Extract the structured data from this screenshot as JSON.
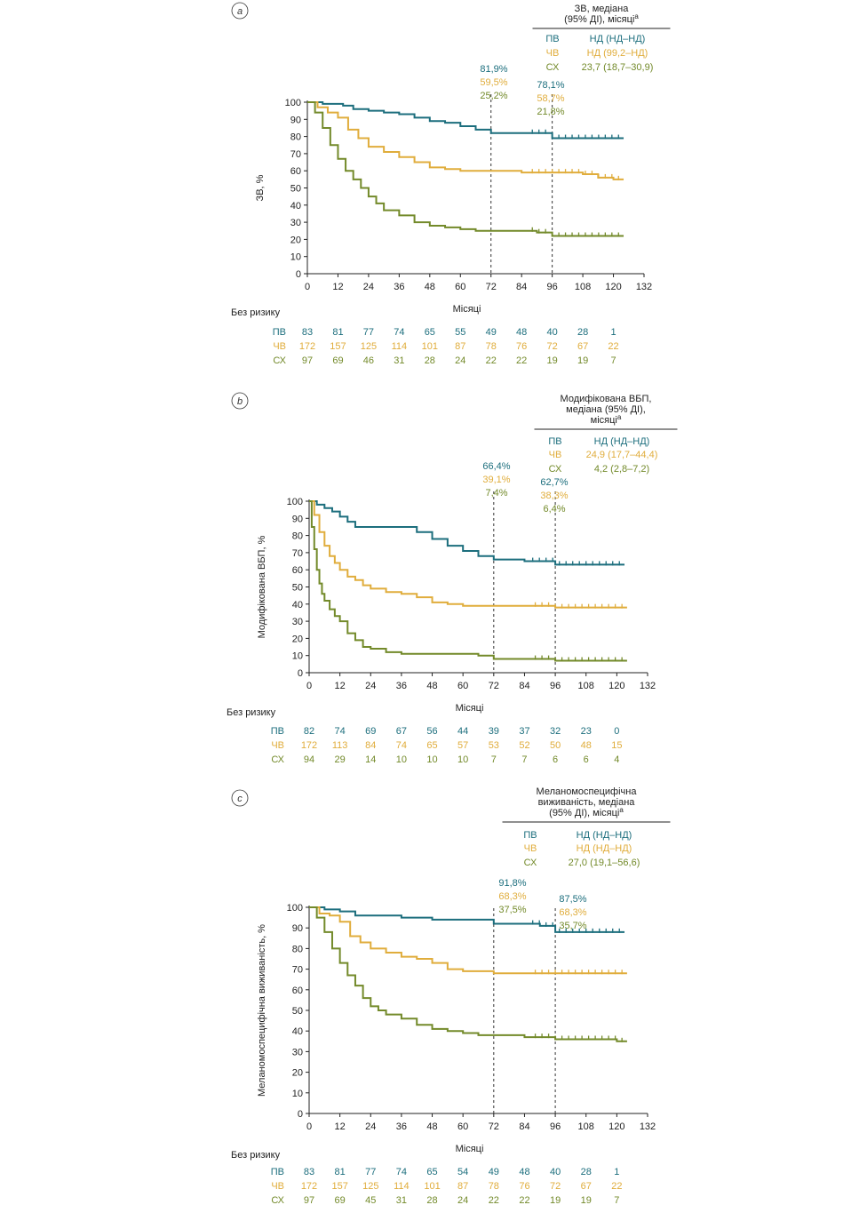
{
  "colors": {
    "pv": "#1c6e7d",
    "chv": "#e0ad3c",
    "sx": "#738a2a",
    "axis": "#222222"
  },
  "common": {
    "xlabel": "Місяці",
    "risk_title": "Без ризику",
    "x_ticks": [
      "0",
      "12",
      "24",
      "36",
      "48",
      "60",
      "72",
      "84",
      "96",
      "108",
      "120",
      "132"
    ],
    "y_ticks": [
      "0",
      "10",
      "20",
      "30",
      "40",
      "50",
      "60",
      "70",
      "80",
      "90",
      "100"
    ]
  },
  "chart_data": [
    {
      "type": "line",
      "panel_label": "a",
      "ylabel": "ЗВ, %",
      "xlim": [
        0,
        132
      ],
      "ylim": [
        0,
        100
      ],
      "legend": {
        "title": [
          "ЗВ, медіана",
          "(95% ДІ), місяці"
        ],
        "sup": "a",
        "rows": [
          {
            "group": "ПВ",
            "value": "НД (НД–НД)"
          },
          {
            "group": "ЧВ",
            "value": "НД (99,2–НД)"
          },
          {
            "group": "СХ",
            "value": "23,7 (18,7–30,9)"
          }
        ]
      },
      "annotations": [
        {
          "x": 72,
          "values": [
            "81,9%",
            "59,5%",
            "25,2%"
          ]
        },
        {
          "x": 96,
          "values": [
            "78,1%",
            "58,7%",
            "21,8%"
          ]
        }
      ],
      "series": [
        {
          "name": "ПВ",
          "x": [
            0,
            6,
            10,
            14,
            18,
            24,
            30,
            36,
            42,
            48,
            54,
            60,
            66,
            72,
            78,
            84,
            90,
            96,
            108,
            120,
            124
          ],
          "y": [
            100,
            99,
            99,
            98,
            96,
            95,
            94,
            93,
            91,
            89,
            88,
            86,
            84,
            82,
            82,
            82,
            82,
            79,
            79,
            79,
            79
          ]
        },
        {
          "name": "ЧВ",
          "x": [
            0,
            4,
            8,
            12,
            16,
            20,
            24,
            30,
            36,
            42,
            48,
            54,
            60,
            66,
            72,
            84,
            96,
            108,
            114,
            120,
            124
          ],
          "y": [
            100,
            97,
            94,
            91,
            84,
            79,
            74,
            71,
            68,
            65,
            62,
            61,
            60,
            60,
            60,
            59,
            59,
            58,
            56,
            55,
            55
          ]
        },
        {
          "name": "СХ",
          "x": [
            0,
            3,
            6,
            9,
            12,
            15,
            18,
            21,
            24,
            27,
            30,
            36,
            42,
            48,
            54,
            60,
            66,
            72,
            84,
            90,
            96,
            108,
            120,
            124
          ],
          "y": [
            100,
            94,
            85,
            75,
            67,
            60,
            55,
            50,
            45,
            41,
            37,
            34,
            30,
            28,
            27,
            26,
            25,
            25,
            25,
            24,
            22,
            22,
            22,
            22
          ]
        }
      ],
      "risk": [
        {
          "group": "ПВ",
          "values": [
            "83",
            "81",
            "77",
            "74",
            "65",
            "55",
            "49",
            "48",
            "40",
            "28",
            "1"
          ]
        },
        {
          "group": "ЧВ",
          "values": [
            "172",
            "157",
            "125",
            "114",
            "101",
            "87",
            "78",
            "76",
            "72",
            "67",
            "22"
          ]
        },
        {
          "group": "СХ",
          "values": [
            "97",
            "69",
            "46",
            "31",
            "28",
            "24",
            "22",
            "22",
            "19",
            "19",
            "7"
          ]
        }
      ]
    },
    {
      "type": "line",
      "panel_label": "b",
      "ylabel": "Модифікована ВБП, %",
      "xlim": [
        0,
        132
      ],
      "ylim": [
        0,
        100
      ],
      "legend": {
        "title": [
          "Модифікована ВБП,",
          "медіана (95% ДІ),",
          "місяці"
        ],
        "sup": "a",
        "rows": [
          {
            "group": "ПВ",
            "value": "НД (НД–НД)"
          },
          {
            "group": "ЧВ",
            "value": "24,9 (17,7–44,4)"
          },
          {
            "group": "СХ",
            "value": "4,2 (2,8–7,2)"
          }
        ]
      },
      "annotations": [
        {
          "x": 72,
          "values": [
            "66,4%",
            "39,1%",
            "7,4%"
          ]
        },
        {
          "x": 96,
          "values": [
            "62,7%",
            "38,3%",
            "6,4%"
          ]
        }
      ],
      "series": [
        {
          "name": "ПВ",
          "x": [
            0,
            3,
            6,
            9,
            12,
            15,
            18,
            24,
            30,
            36,
            42,
            48,
            54,
            60,
            66,
            72,
            84,
            96,
            108,
            120,
            123
          ],
          "y": [
            100,
            98,
            96,
            94,
            91,
            88,
            85,
            85,
            85,
            85,
            82,
            78,
            74,
            71,
            68,
            66,
            65,
            63,
            63,
            63,
            63
          ]
        },
        {
          "name": "ЧВ",
          "x": [
            0,
            2,
            4,
            6,
            8,
            10,
            12,
            15,
            18,
            21,
            24,
            30,
            36,
            42,
            48,
            54,
            60,
            66,
            72,
            84,
            96,
            108,
            120,
            124
          ],
          "y": [
            100,
            92,
            82,
            74,
            68,
            64,
            60,
            56,
            54,
            51,
            49,
            47,
            46,
            44,
            41,
            40,
            39,
            39,
            39,
            39,
            38,
            38,
            38,
            38
          ]
        },
        {
          "name": "СХ",
          "x": [
            0,
            1,
            2,
            3,
            4,
            5,
            6,
            8,
            10,
            12,
            15,
            18,
            21,
            24,
            30,
            36,
            48,
            60,
            66,
            72,
            84,
            96,
            108,
            120,
            124
          ],
          "y": [
            100,
            85,
            72,
            60,
            52,
            46,
            42,
            37,
            33,
            30,
            23,
            19,
            15,
            14,
            12,
            11,
            11,
            11,
            10,
            8,
            8,
            7,
            7,
            7,
            7
          ]
        }
      ],
      "risk": [
        {
          "group": "ПВ",
          "values": [
            "82",
            "74",
            "69",
            "67",
            "56",
            "44",
            "39",
            "37",
            "32",
            "23",
            "0"
          ]
        },
        {
          "group": "ЧВ",
          "values": [
            "172",
            "113",
            "84",
            "74",
            "65",
            "57",
            "53",
            "52",
            "50",
            "48",
            "15"
          ]
        },
        {
          "group": "СХ",
          "values": [
            "94",
            "29",
            "14",
            "10",
            "10",
            "10",
            "7",
            "7",
            "6",
            "6",
            "4"
          ]
        }
      ]
    },
    {
      "type": "line",
      "panel_label": "c",
      "ylabel": "Меланомоспецифічна виживаність, %",
      "xlim": [
        0,
        132
      ],
      "ylim": [
        0,
        100
      ],
      "legend": {
        "title": [
          "Меланомоспецифічна",
          "виживаність, медіана",
          "(95% ДІ), місяці"
        ],
        "sup": "a",
        "rows": [
          {
            "group": "ПВ",
            "value": "НД (НД–НД)"
          },
          {
            "group": "ЧВ",
            "value": "НД (НД–НД)"
          },
          {
            "group": "СХ",
            "value": "27,0 (19,1–56,6)"
          }
        ]
      },
      "annotations": [
        {
          "x": 72,
          "values": [
            "91,8%",
            "68,3%",
            "37,5%"
          ]
        },
        {
          "x": 96,
          "values": [
            "87,5%",
            "68,3%",
            "35,7%"
          ]
        }
      ],
      "series": [
        {
          "name": "ПВ",
          "x": [
            0,
            6,
            12,
            18,
            24,
            36,
            42,
            48,
            60,
            66,
            72,
            84,
            90,
            96,
            108,
            120,
            123
          ],
          "y": [
            100,
            99,
            98,
            96,
            96,
            95,
            95,
            94,
            94,
            94,
            92,
            92,
            91,
            88,
            88,
            88,
            88
          ]
        },
        {
          "name": "ЧВ",
          "x": [
            0,
            4,
            8,
            12,
            16,
            20,
            24,
            30,
            36,
            42,
            48,
            54,
            60,
            66,
            72,
            84,
            96,
            108,
            120,
            124
          ],
          "y": [
            100,
            97,
            96,
            93,
            86,
            83,
            80,
            78,
            76,
            75,
            73,
            70,
            69,
            69,
            68,
            68,
            68,
            68,
            68,
            68
          ]
        },
        {
          "name": "СХ",
          "x": [
            0,
            3,
            6,
            9,
            12,
            15,
            18,
            21,
            24,
            27,
            30,
            36,
            42,
            48,
            54,
            60,
            66,
            72,
            84,
            96,
            108,
            114,
            120,
            124
          ],
          "y": [
            100,
            95,
            88,
            80,
            73,
            67,
            62,
            56,
            52,
            50,
            48,
            46,
            43,
            41,
            40,
            39,
            38,
            38,
            37,
            36,
            36,
            36,
            35,
            35
          ]
        }
      ],
      "risk": [
        {
          "group": "ПВ",
          "values": [
            "83",
            "81",
            "77",
            "74",
            "65",
            "54",
            "49",
            "48",
            "40",
            "28",
            "1"
          ]
        },
        {
          "group": "ЧВ",
          "values": [
            "172",
            "157",
            "125",
            "114",
            "101",
            "87",
            "78",
            "76",
            "72",
            "67",
            "22"
          ]
        },
        {
          "group": "СХ",
          "values": [
            "97",
            "69",
            "45",
            "31",
            "28",
            "24",
            "22",
            "22",
            "19",
            "19",
            "7"
          ]
        }
      ]
    }
  ]
}
